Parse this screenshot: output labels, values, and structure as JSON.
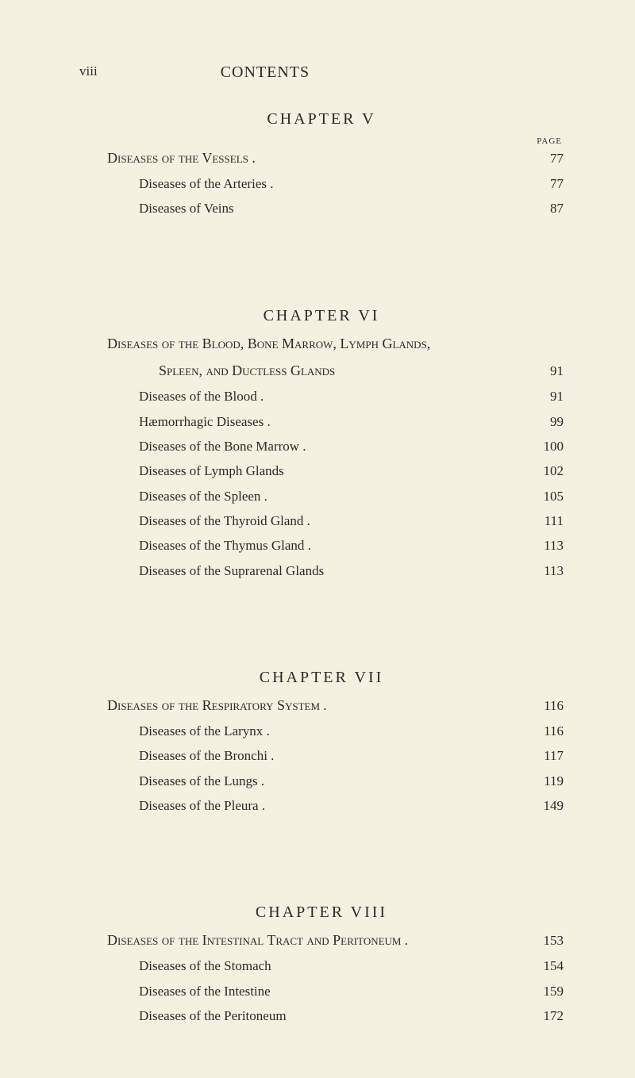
{
  "header": {
    "roman": "viii",
    "title": "CONTENTS"
  },
  "page_label": "PAGE",
  "chapters": [
    {
      "title": "CHAPTER  V",
      "show_page_label": true,
      "entries": [
        {
          "text_caps": "Diseases of the Vessels .",
          "text": "",
          "page": "77",
          "indent": false
        },
        {
          "text_caps": "",
          "text": "Diseases of the Arteries .",
          "page": "77",
          "indent": true
        },
        {
          "text_caps": "",
          "text": "Diseases of Veins",
          "page": "87",
          "indent": true
        }
      ]
    },
    {
      "title": "CHAPTER  VI",
      "show_page_label": false,
      "entries": [
        {
          "text_caps": "Diseases of the Blood, Bone Marrow, Lymph Glands,",
          "continuation_caps": "Spleen, and Ductless Glands",
          "text": "",
          "page": "91",
          "indent": false,
          "multiline": true
        },
        {
          "text_caps": "",
          "text": "Diseases of the Blood  .",
          "page": "91",
          "indent": true
        },
        {
          "text_caps": "",
          "text": "Hæmorrhagic Diseases .",
          "page": "99",
          "indent": true
        },
        {
          "text_caps": "",
          "text": "Diseases of the Bone Marrow   .",
          "page": "100",
          "indent": true
        },
        {
          "text_caps": "",
          "text": "Diseases of Lymph Glands",
          "page": "102",
          "indent": true
        },
        {
          "text_caps": "",
          "text": "Diseases of the Spleen .",
          "page": "105",
          "indent": true
        },
        {
          "text_caps": "",
          "text": "Diseases of the Thyroid Gland .",
          "page": "111",
          "indent": true
        },
        {
          "text_caps": "",
          "text": "Diseases of the Thymus Gland .",
          "page": "113",
          "indent": true
        },
        {
          "text_caps": "",
          "text": "Diseases of the Suprarenal Glands",
          "page": "113",
          "indent": true
        }
      ]
    },
    {
      "title": "CHAPTER  VII",
      "show_page_label": false,
      "entries": [
        {
          "text_caps": "Diseases of the Respiratory System",
          "text": "  .",
          "page": "116",
          "indent": false
        },
        {
          "text_caps": "",
          "text": "Diseases of the Larynx .",
          "page": "116",
          "indent": true
        },
        {
          "text_caps": "",
          "text": "Diseases of the Bronchi .",
          "page": "117",
          "indent": true
        },
        {
          "text_caps": "",
          "text": "Diseases of the Lungs  .",
          "page": "119",
          "indent": true
        },
        {
          "text_caps": "",
          "text": "Diseases of the Pleura  .",
          "page": "149",
          "indent": true
        }
      ]
    },
    {
      "title": "CHAPTER  VIII",
      "show_page_label": false,
      "entries": [
        {
          "text_caps": "Diseases of the Intestinal Tract and Peritoneum",
          "text": " .",
          "page": "153",
          "indent": false
        },
        {
          "text_caps": "",
          "text": "Diseases of the Stomach",
          "page": "154",
          "indent": true
        },
        {
          "text_caps": "",
          "text": "Diseases of the Intestine",
          "page": "159",
          "indent": true
        },
        {
          "text_caps": "",
          "text": "Diseases of the Peritoneum",
          "page": "172",
          "indent": true
        }
      ]
    }
  ]
}
